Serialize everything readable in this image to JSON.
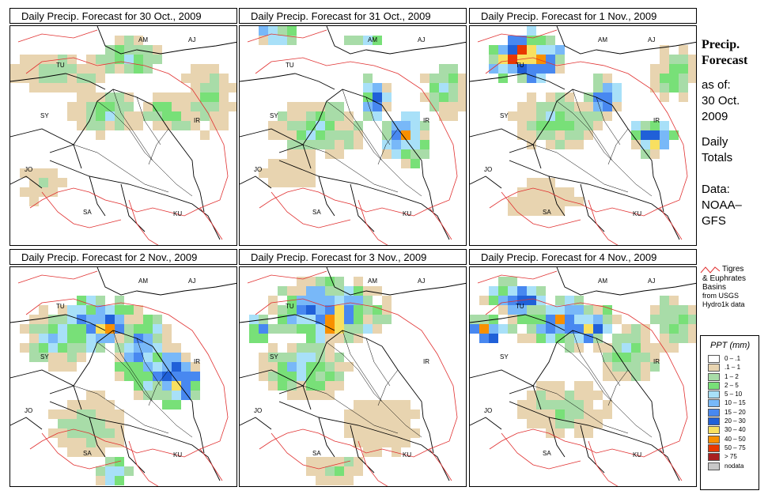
{
  "panels": [
    {
      "title": "Daily Precip. Forecast for  30 Oct., 2009"
    },
    {
      "title": "Daily Precip. Forecast for  31 Oct., 2009"
    },
    {
      "title": "Daily Precip. Forecast for  1 Nov., 2009"
    },
    {
      "title": "Daily Precip. Forecast for  2 Nov., 2009"
    },
    {
      "title": "Daily Precip. Forecast for  3 Nov., 2009"
    },
    {
      "title": "Daily Precip. Forecast for  4 Nov., 2009"
    }
  ],
  "map_labels": [
    "AM",
    "AJ",
    "TU",
    "SY",
    "IR",
    "JO",
    "SA",
    "KU"
  ],
  "side": {
    "title_line1": "Precip.",
    "title_line2": "Forecast",
    "asof": "as of:",
    "date_line1": "30 Oct.",
    "date_line2": "2009",
    "daily1": "Daily",
    "daily2": "Totals",
    "data1": "Data:",
    "data2": "NOAA–",
    "data3": "GFS"
  },
  "basin_legend": {
    "line1": "Tigres",
    "line2": "& Euphrates",
    "line3": "Basins",
    "line4": "from USGS",
    "line5": "Hydro1k data",
    "color": "#e03030"
  },
  "ppt_legend": {
    "title": "PPT (mm)",
    "classes": [
      {
        "label": "0 – .1",
        "color": "#ffffff"
      },
      {
        "label": ".1 – 1",
        "color": "#e8d4b0"
      },
      {
        "label": "1 – 2",
        "color": "#a8dca8"
      },
      {
        "label": "2 – 5",
        "color": "#78e078"
      },
      {
        "label": "5 – 10",
        "color": "#a8e0f8"
      },
      {
        "label": "10 – 15",
        "color": "#78b8f8"
      },
      {
        "label": "15 – 20",
        "color": "#4888f0"
      },
      {
        "label": "20 – 30",
        "color": "#2060d8"
      },
      {
        "label": "30 – 40",
        "color": "#f8e060"
      },
      {
        "label": "40 – 50",
        "color": "#f89000"
      },
      {
        "label": "50 – 75",
        "color": "#e83800"
      },
      {
        "label": "> 75",
        "color": "#a82020"
      },
      {
        "label": "nodata",
        "color": "#c8c8c8"
      }
    ]
  }
}
